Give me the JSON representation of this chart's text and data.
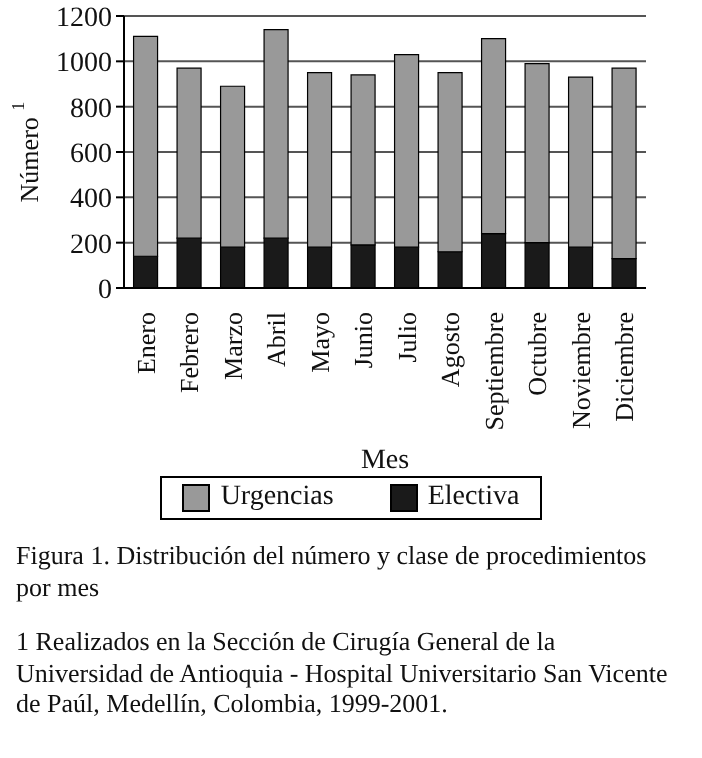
{
  "chart_data": {
    "type": "bar",
    "stacked": true,
    "title": "Figura 1. Distribución del número y clase de procedimientos por mes",
    "xlabel": "Mes",
    "ylabel": "Número $^{1}$",
    "categories": [
      "Enero",
      "Febrero",
      "Marzo",
      "Abril",
      "Mayo",
      "Junio",
      "Julio",
      "Agosto",
      "Septiembre",
      "Octubre",
      "Noviembre",
      "Diciembre"
    ],
    "series": [
      {
        "name": "Electiva",
        "color": "#1a1a1a",
        "values": [
          140,
          220,
          180,
          220,
          180,
          190,
          180,
          160,
          240,
          200,
          180,
          130
        ]
      },
      {
        "name": "Urgencias",
        "color": "#999999",
        "values": [
          970,
          750,
          710,
          920,
          770,
          750,
          850,
          790,
          860,
          790,
          750,
          840
        ]
      }
    ],
    "ylim": [
      0,
      1200
    ],
    "yticks": [
      0,
      200,
      400,
      600,
      800,
      1000,
      1200
    ],
    "grid": "y",
    "legend": "bottom",
    "annotations": [
      "1 Realizados en la Sección de Cirugía General de la Universidad de Antioquia - Hospital Universitario San Vicente de Paúl, Medellín, Colombia, 1999-2001."
    ]
  }
}
